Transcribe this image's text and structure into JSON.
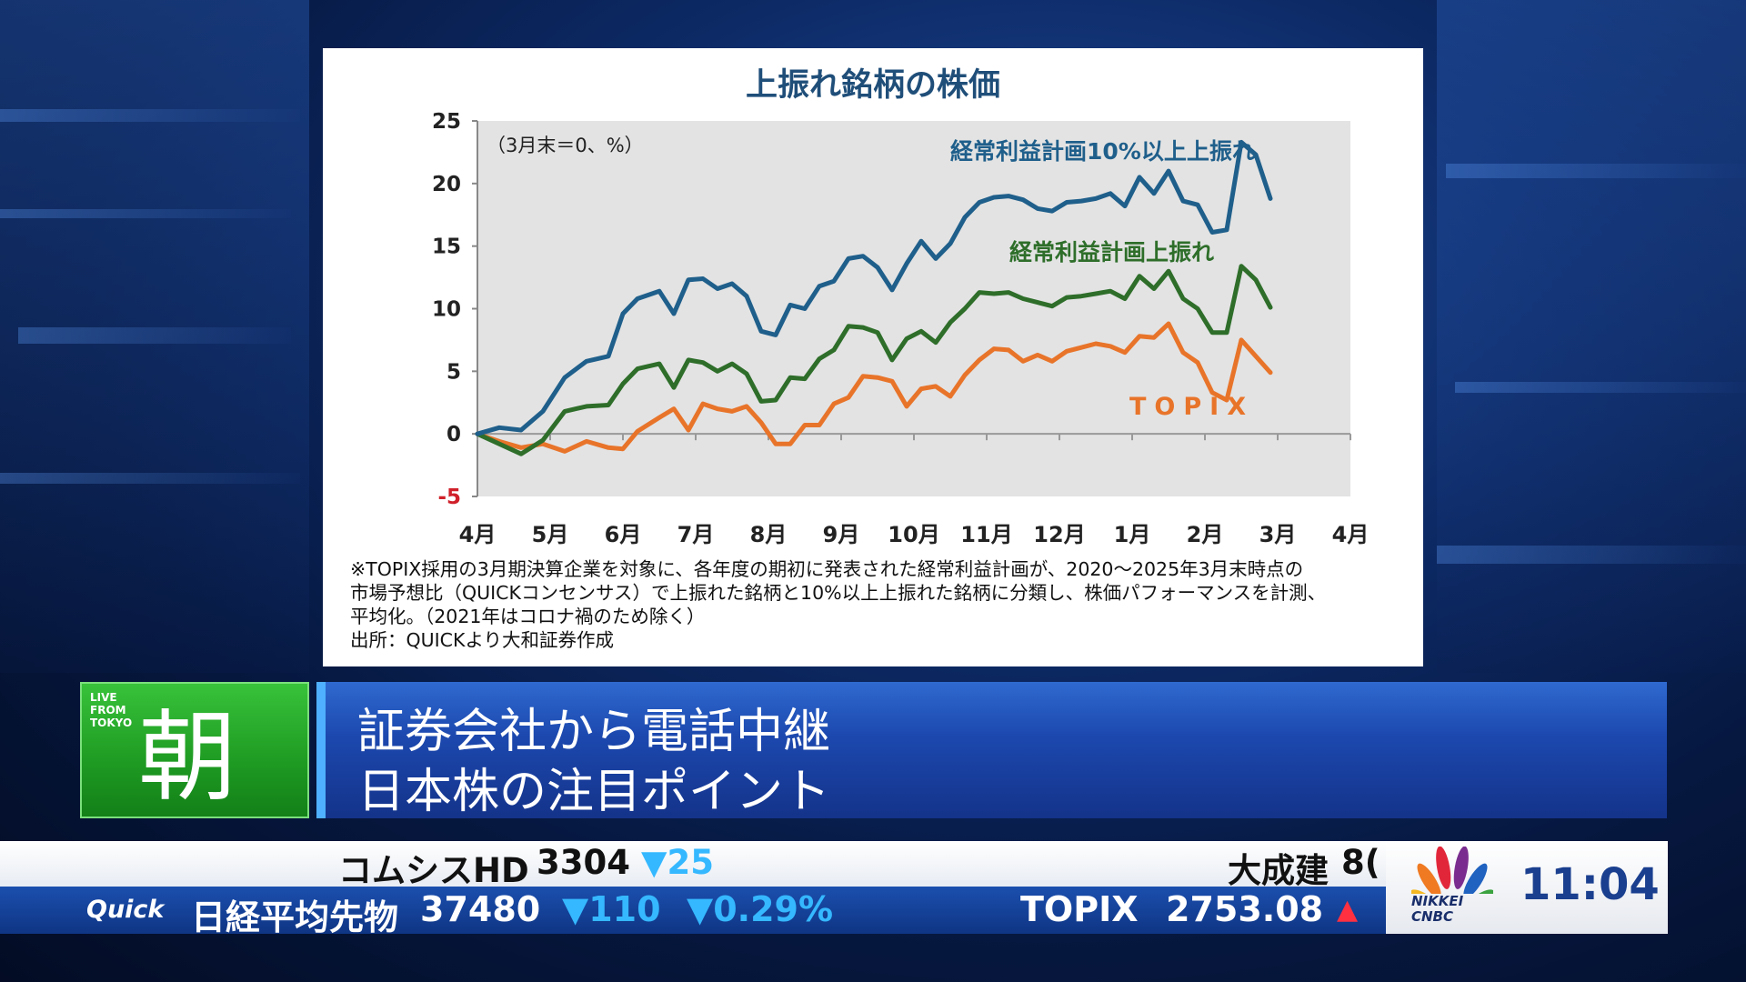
{
  "chart": {
    "title": "上振れ銘柄の株価",
    "unit_note": "（3月末＝0、%）",
    "y_ticks": [
      "25",
      "20",
      "15",
      "10",
      "5",
      "0",
      "-5"
    ],
    "x_ticks": [
      "4月",
      "5月",
      "6月",
      "7月",
      "8月",
      "9月",
      "10月",
      "11月",
      "12月",
      "1月",
      "2月",
      "3月",
      "4月"
    ],
    "footnote": [
      "※TOPIX採用の3月期決算企業を対象に、各年度の期初に発表された経常利益計画が、2020～2025年3月末時点の",
      "市場予想比（QUICKコンセンサス）で上振れた銘柄と10%以上上振れた銘柄に分類し、株価パフォーマンスを計測、",
      "平均化。（2021年はコロナ禍のため除く）",
      "出所：QUICKより大和証券作成"
    ]
  },
  "chart_data": {
    "type": "line",
    "title": "上振れ銘柄の株価",
    "ylabel": "（3月末＝0、%）",
    "ylim": [
      -5,
      25
    ],
    "xlim": [
      0,
      12
    ],
    "x_tick_labels": [
      "4月",
      "5月",
      "6月",
      "7月",
      "8月",
      "9月",
      "10月",
      "11月",
      "12月",
      "1月",
      "2月",
      "3月",
      "4月"
    ],
    "grid": false,
    "series": [
      {
        "name": "経常利益計画10%以上上振れ",
        "color": "#1f5f8b",
        "points": [
          [
            0,
            0
          ],
          [
            0.3,
            0.5
          ],
          [
            0.6,
            0.3
          ],
          [
            0.9,
            1.8
          ],
          [
            1.2,
            4.5
          ],
          [
            1.5,
            5.8
          ],
          [
            1.8,
            6.2
          ],
          [
            2.0,
            9.6
          ],
          [
            2.2,
            10.8
          ],
          [
            2.5,
            11.4
          ],
          [
            2.7,
            9.6
          ],
          [
            2.9,
            12.3
          ],
          [
            3.1,
            12.4
          ],
          [
            3.3,
            11.6
          ],
          [
            3.5,
            12.0
          ],
          [
            3.7,
            11.0
          ],
          [
            3.9,
            8.2
          ],
          [
            4.1,
            7.9
          ],
          [
            4.3,
            10.3
          ],
          [
            4.5,
            10.0
          ],
          [
            4.7,
            11.8
          ],
          [
            4.9,
            12.2
          ],
          [
            5.1,
            14.0
          ],
          [
            5.3,
            14.2
          ],
          [
            5.5,
            13.3
          ],
          [
            5.7,
            11.5
          ],
          [
            5.9,
            13.6
          ],
          [
            6.1,
            15.4
          ],
          [
            6.3,
            14.0
          ],
          [
            6.5,
            15.2
          ],
          [
            6.7,
            17.3
          ],
          [
            6.9,
            18.5
          ],
          [
            7.1,
            18.9
          ],
          [
            7.3,
            19.0
          ],
          [
            7.5,
            18.7
          ],
          [
            7.7,
            18.0
          ],
          [
            7.9,
            17.8
          ],
          [
            8.1,
            18.5
          ],
          [
            8.3,
            18.6
          ],
          [
            8.5,
            18.8
          ],
          [
            8.7,
            19.2
          ],
          [
            8.9,
            18.2
          ],
          [
            9.1,
            20.5
          ],
          [
            9.3,
            19.2
          ],
          [
            9.5,
            21.0
          ],
          [
            9.7,
            18.6
          ],
          [
            9.9,
            18.3
          ],
          [
            10.1,
            16.1
          ],
          [
            10.3,
            16.3
          ],
          [
            10.5,
            23.3
          ],
          [
            10.7,
            22.3
          ],
          [
            10.9,
            18.8
          ]
        ]
      },
      {
        "name": "経常利益計画上振れ",
        "color": "#2e6e2a",
        "points": [
          [
            0,
            0
          ],
          [
            0.3,
            -0.8
          ],
          [
            0.6,
            -1.6
          ],
          [
            0.9,
            -0.5
          ],
          [
            1.2,
            1.8
          ],
          [
            1.5,
            2.2
          ],
          [
            1.8,
            2.3
          ],
          [
            2.0,
            4.0
          ],
          [
            2.2,
            5.2
          ],
          [
            2.5,
            5.6
          ],
          [
            2.7,
            3.7
          ],
          [
            2.9,
            5.9
          ],
          [
            3.1,
            5.7
          ],
          [
            3.3,
            5.0
          ],
          [
            3.5,
            5.6
          ],
          [
            3.7,
            4.8
          ],
          [
            3.9,
            2.6
          ],
          [
            4.1,
            2.7
          ],
          [
            4.3,
            4.5
          ],
          [
            4.5,
            4.4
          ],
          [
            4.7,
            6.0
          ],
          [
            4.9,
            6.7
          ],
          [
            5.1,
            8.6
          ],
          [
            5.3,
            8.5
          ],
          [
            5.5,
            8.1
          ],
          [
            5.7,
            5.9
          ],
          [
            5.9,
            7.6
          ],
          [
            6.1,
            8.2
          ],
          [
            6.3,
            7.3
          ],
          [
            6.5,
            8.9
          ],
          [
            6.7,
            10.0
          ],
          [
            6.9,
            11.3
          ],
          [
            7.1,
            11.2
          ],
          [
            7.3,
            11.3
          ],
          [
            7.5,
            10.8
          ],
          [
            7.7,
            10.5
          ],
          [
            7.9,
            10.2
          ],
          [
            8.1,
            10.9
          ],
          [
            8.3,
            11.0
          ],
          [
            8.5,
            11.2
          ],
          [
            8.7,
            11.4
          ],
          [
            8.9,
            10.8
          ],
          [
            9.1,
            12.6
          ],
          [
            9.3,
            11.6
          ],
          [
            9.5,
            13.0
          ],
          [
            9.7,
            10.8
          ],
          [
            9.9,
            10.0
          ],
          [
            10.1,
            8.1
          ],
          [
            10.3,
            8.1
          ],
          [
            10.5,
            13.4
          ],
          [
            10.7,
            12.3
          ],
          [
            10.9,
            10.1
          ]
        ]
      },
      {
        "name": "TOPIX",
        "color": "#e8742a",
        "points": [
          [
            0,
            0
          ],
          [
            0.3,
            -0.6
          ],
          [
            0.6,
            -1.1
          ],
          [
            0.9,
            -0.8
          ],
          [
            1.2,
            -1.4
          ],
          [
            1.5,
            -0.6
          ],
          [
            1.8,
            -1.1
          ],
          [
            2.0,
            -1.2
          ],
          [
            2.2,
            0.2
          ],
          [
            2.5,
            1.3
          ],
          [
            2.7,
            2.0
          ],
          [
            2.9,
            0.3
          ],
          [
            3.1,
            2.4
          ],
          [
            3.3,
            2.0
          ],
          [
            3.5,
            1.8
          ],
          [
            3.7,
            2.2
          ],
          [
            3.9,
            0.9
          ],
          [
            4.1,
            -0.8
          ],
          [
            4.3,
            -0.8
          ],
          [
            4.5,
            0.7
          ],
          [
            4.7,
            0.7
          ],
          [
            4.9,
            2.4
          ],
          [
            5.1,
            2.9
          ],
          [
            5.3,
            4.6
          ],
          [
            5.5,
            4.5
          ],
          [
            5.7,
            4.2
          ],
          [
            5.9,
            2.2
          ],
          [
            6.1,
            3.6
          ],
          [
            6.3,
            3.8
          ],
          [
            6.5,
            3.0
          ],
          [
            6.7,
            4.7
          ],
          [
            6.9,
            5.9
          ],
          [
            7.1,
            6.8
          ],
          [
            7.3,
            6.7
          ],
          [
            7.5,
            5.8
          ],
          [
            7.7,
            6.3
          ],
          [
            7.9,
            5.8
          ],
          [
            8.1,
            6.6
          ],
          [
            8.3,
            6.9
          ],
          [
            8.5,
            7.2
          ],
          [
            8.7,
            7.0
          ],
          [
            8.9,
            6.5
          ],
          [
            9.1,
            7.8
          ],
          [
            9.3,
            7.7
          ],
          [
            9.5,
            8.8
          ],
          [
            9.7,
            6.5
          ],
          [
            9.9,
            5.7
          ],
          [
            10.1,
            3.3
          ],
          [
            10.3,
            2.7
          ],
          [
            10.5,
            7.5
          ],
          [
            10.7,
            6.2
          ],
          [
            10.9,
            4.9
          ]
        ]
      }
    ]
  },
  "banner": {
    "live": [
      "LIVE",
      "FROM",
      "TOKYO"
    ],
    "kanji": "朝",
    "headline_1": "証券会社から電話中継",
    "headline_2": "日本株の注目ポイント"
  },
  "ticker_top": {
    "stock_name": "コムシスHD",
    "price": "3304",
    "change": "▼25",
    "next_name": "大成建",
    "next_price": "8("
  },
  "ticker_bottom": {
    "provider": "Quick",
    "index_name": "日経平均先物",
    "index_value": "37480",
    "index_change": "▼110",
    "index_pct": "▼0.29%",
    "index2_name": "TOPIX",
    "index2_value": "2753.08",
    "index2_arrow": "▲"
  },
  "network": {
    "logo_line1": "NIKKEI",
    "logo_line2": "CNBC",
    "clock": "11:04"
  }
}
